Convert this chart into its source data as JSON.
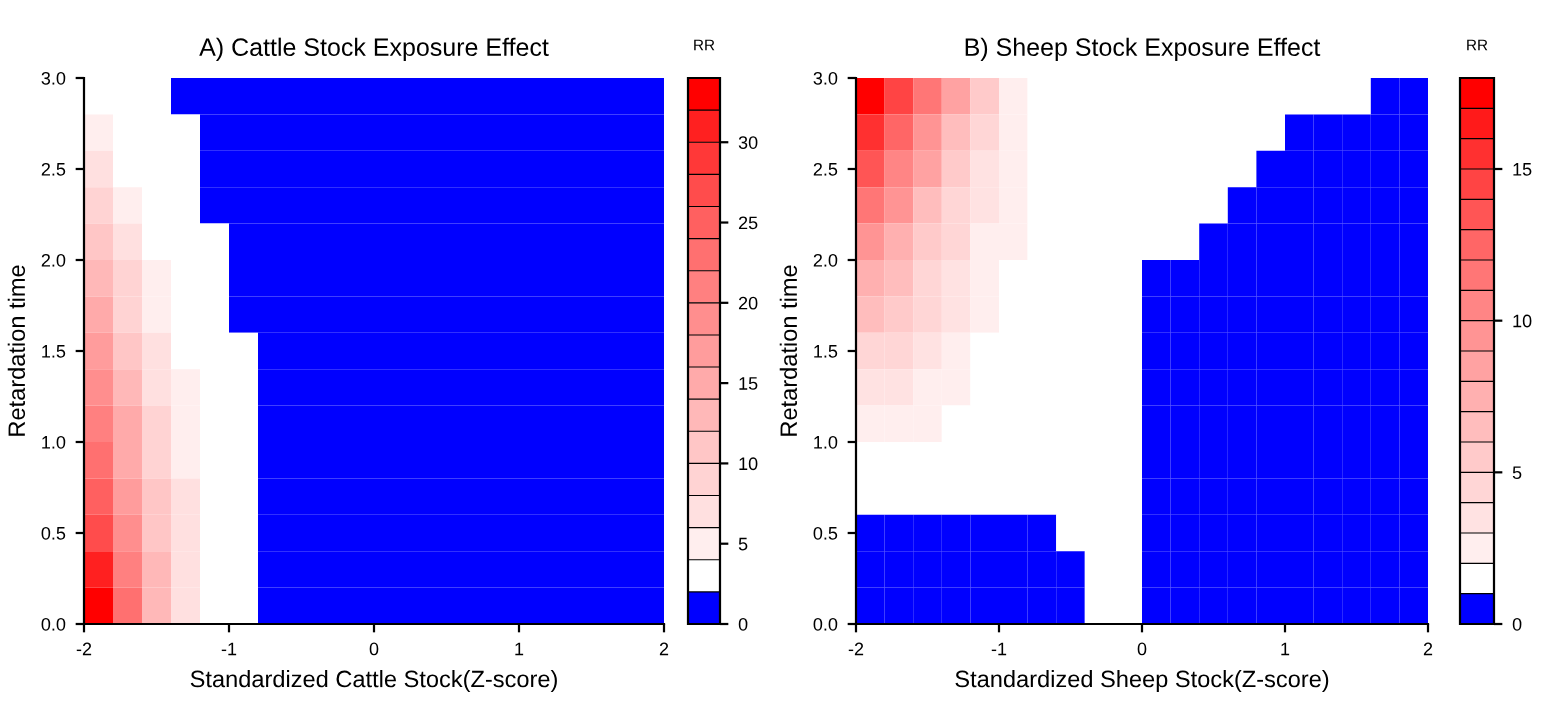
{
  "chart_data": [
    {
      "type": "heatmap",
      "title": "A) Cattle Stock Exposure Effect",
      "xlabel": "Standardized Cattle Stock(Z-score)",
      "ylabel": "Retardation time",
      "clabel": "RR",
      "x": [
        -1.9,
        -1.7,
        -1.5,
        -1.3,
        -1.1,
        -0.9,
        -0.7,
        -0.5,
        -0.3,
        -0.1,
        0.1,
        0.3,
        0.5,
        0.7,
        0.9,
        1.1,
        1.3,
        1.5,
        1.7,
        1.9
      ],
      "y": [
        2.9,
        2.7,
        2.5,
        2.3,
        2.1,
        1.9,
        1.7,
        1.5,
        1.3,
        1.1,
        0.9,
        0.7,
        0.5,
        0.3,
        0.1
      ],
      "xlim": [
        -2,
        2
      ],
      "xticks": [
        -2,
        -1,
        0,
        1,
        2
      ],
      "ylim": [
        0,
        3
      ],
      "yticks": [
        {
          "value": 0,
          "label": "0.0"
        },
        {
          "value": 0.5,
          "label": "0.5"
        },
        {
          "value": 1,
          "label": "1.0"
        },
        {
          "value": 1.5,
          "label": "1.5"
        },
        {
          "value": 2,
          "label": "2.0"
        },
        {
          "value": 2.5,
          "label": "2.5"
        },
        {
          "value": 3,
          "label": "3.0"
        }
      ],
      "clim": [
        0,
        34
      ],
      "cticks": [
        0,
        5,
        10,
        15,
        20,
        25,
        30
      ],
      "colors": [
        "#0000ff",
        "#ffffff",
        "#ffeeee",
        "#ffe0e0",
        "#ffd3d3",
        "#ffc6c6",
        "#ffb8b8",
        "#ffaaaa",
        "#ff9c9c",
        "#ff8e8e",
        "#ff8080",
        "#ff7070",
        "#ff6060",
        "#ff4c4c",
        "#ff3838",
        "#ff2020",
        "#ff0000"
      ],
      "cells": [
        [
          3.5,
          3,
          2.5,
          1,
          1,
          1,
          1,
          1,
          1,
          1,
          1,
          1,
          1,
          1,
          1,
          1,
          1,
          1,
          1,
          1
        ],
        [
          5,
          3.5,
          3,
          2.2,
          1,
          1,
          1,
          1,
          1,
          1,
          1,
          1,
          1,
          1,
          1,
          1,
          1,
          1,
          1,
          1
        ],
        [
          6,
          3.8,
          3.2,
          2.5,
          1,
          1,
          1,
          1,
          1,
          1,
          1,
          1,
          1,
          1,
          1,
          1,
          1,
          1,
          1,
          1
        ],
        [
          8,
          4.5,
          3.5,
          2.8,
          1,
          1,
          1,
          1,
          1,
          1,
          1,
          1,
          1,
          1,
          1,
          1,
          1,
          1,
          1,
          1
        ],
        [
          10,
          6,
          3.8,
          3,
          2.2,
          1,
          1,
          1,
          1,
          1,
          1,
          1,
          1,
          1,
          1,
          1,
          1,
          1,
          1,
          1
        ],
        [
          12,
          8,
          4.5,
          3.3,
          2.5,
          1,
          1,
          1,
          1,
          1,
          1,
          1,
          1,
          1,
          1,
          1,
          1,
          1,
          1,
          1
        ],
        [
          14,
          9,
          5.5,
          3.5,
          2.7,
          1,
          1,
          1,
          1,
          1,
          1,
          1,
          1,
          1,
          1,
          1,
          1,
          1,
          1,
          1
        ],
        [
          16,
          11,
          6.5,
          3.8,
          2.8,
          2.1,
          1,
          1,
          1,
          1,
          1,
          1,
          1,
          1,
          1,
          1,
          1,
          1,
          1,
          1
        ],
        [
          18,
          12,
          7.5,
          4.2,
          3,
          2.2,
          1,
          1,
          1,
          1,
          1,
          1,
          1,
          1,
          1,
          1,
          1,
          1,
          1,
          1
        ],
        [
          20,
          14,
          8.5,
          5,
          3.2,
          2.3,
          1,
          1,
          1,
          1,
          1,
          1,
          1,
          1,
          1,
          1,
          1,
          1,
          1,
          1
        ],
        [
          22,
          15,
          9.5,
          5.5,
          3.4,
          2.4,
          1,
          1,
          1,
          1,
          1,
          1,
          1,
          1,
          1,
          1,
          1,
          1,
          1,
          1
        ],
        [
          25,
          17,
          10.5,
          6,
          3.5,
          2.5,
          1,
          1,
          1,
          1,
          1,
          1,
          1,
          1,
          1,
          1,
          1,
          1,
          1,
          1
        ],
        [
          27,
          18,
          11,
          6.5,
          3.6,
          2.5,
          1,
          1,
          1,
          1,
          1,
          1,
          1,
          1,
          1,
          1,
          1,
          1,
          1,
          1
        ],
        [
          30,
          20,
          12,
          7,
          3.8,
          2.6,
          1,
          1,
          1,
          1,
          1,
          1,
          1,
          1,
          1,
          1,
          1,
          1,
          1,
          1
        ],
        [
          33,
          22,
          13,
          7.5,
          3.9,
          2.6,
          1,
          1,
          1,
          1,
          1,
          1,
          1,
          1,
          1,
          1,
          1,
          1,
          1,
          1
        ]
      ]
    },
    {
      "type": "heatmap",
      "title": "B) Sheep Stock Exposure Effect",
      "xlabel": "Standardized Sheep Stock(Z-score)",
      "ylabel": "Retardation time",
      "clabel": "RR",
      "x": [
        -1.9,
        -1.7,
        -1.5,
        -1.3,
        -1.1,
        -0.9,
        -0.7,
        -0.5,
        -0.3,
        -0.1,
        0.1,
        0.3,
        0.5,
        0.7,
        0.9,
        1.1,
        1.3,
        1.5,
        1.7,
        1.9
      ],
      "y": [
        2.9,
        2.7,
        2.5,
        2.3,
        2.1,
        1.9,
        1.7,
        1.5,
        1.3,
        1.1,
        0.9,
        0.7,
        0.5,
        0.3,
        0.1
      ],
      "xlim": [
        -2,
        2
      ],
      "xticks": [
        -2,
        -1,
        0,
        1,
        2
      ],
      "ylim": [
        0,
        3
      ],
      "yticks": [
        {
          "value": 0,
          "label": "0.0"
        },
        {
          "value": 0.5,
          "label": "0.5"
        },
        {
          "value": 1,
          "label": "1.0"
        },
        {
          "value": 1.5,
          "label": "1.5"
        },
        {
          "value": 2,
          "label": "2.0"
        },
        {
          "value": 2.5,
          "label": "2.5"
        },
        {
          "value": 3,
          "label": "3.0"
        }
      ],
      "clim": [
        0,
        18
      ],
      "cticks": [
        0,
        5,
        10,
        15
      ],
      "colors": [
        "#0000ff",
        "#ffffff",
        "#ffeeee",
        "#ffe2e2",
        "#ffd6d6",
        "#ffcaca",
        "#ffbdbd",
        "#ffb0b0",
        "#ffa2a2",
        "#ff9494",
        "#ff8585",
        "#ff7676",
        "#ff6666",
        "#ff5555",
        "#ff4444",
        "#ff3030",
        "#ff1a1a",
        "#ff0000"
      ],
      "cells": [
        [
          17,
          14,
          11,
          8,
          5,
          2.5,
          1.5,
          1.5,
          1.5,
          1.5,
          1.5,
          1.5,
          1.5,
          1.5,
          1.5,
          1.5,
          1.5,
          1.5,
          0.6,
          0.6
        ],
        [
          15,
          12,
          9,
          6.5,
          4,
          2.3,
          1.5,
          1.5,
          1.5,
          1.5,
          1.5,
          1.5,
          1.5,
          1.5,
          1.5,
          0.9,
          0.6,
          0.6,
          0.6,
          0.6
        ],
        [
          13,
          10.5,
          8,
          5.5,
          3.5,
          2.2,
          1.5,
          1.5,
          1.5,
          1.5,
          1.5,
          1.5,
          1.5,
          1.5,
          0.6,
          0.6,
          0.6,
          0.6,
          0.6,
          0.6
        ],
        [
          11,
          9,
          6.5,
          4.5,
          3,
          2.1,
          1.5,
          1.5,
          1.5,
          1.5,
          1.5,
          1.5,
          1.5,
          0.6,
          0.6,
          0.6,
          0.6,
          0.6,
          0.6,
          0.6
        ],
        [
          9,
          7.5,
          5.5,
          4,
          2.8,
          2.05,
          1.5,
          1.5,
          1.5,
          1.5,
          1.5,
          1.5,
          0.6,
          0.6,
          0.6,
          0.6,
          0.6,
          0.6,
          0.6,
          0.6
        ],
        [
          7.5,
          6,
          4.5,
          3.5,
          2.6,
          1.9,
          1.5,
          1.5,
          1.5,
          1.5,
          0.6,
          0.6,
          0.6,
          0.6,
          0.6,
          0.6,
          0.6,
          0.6,
          0.6,
          0.6
        ],
        [
          6,
          5,
          4,
          3,
          2.3,
          1.8,
          1.5,
          1.5,
          1.5,
          1.5,
          0.6,
          0.6,
          0.6,
          0.6,
          0.6,
          0.6,
          0.6,
          0.6,
          0.6,
          0.6
        ],
        [
          4.5,
          4,
          3.3,
          2.6,
          1.9,
          1.7,
          1.5,
          1.5,
          1.5,
          1.5,
          0.6,
          0.6,
          0.6,
          0.6,
          0.6,
          0.6,
          0.6,
          0.6,
          0.6,
          0.6
        ],
        [
          3.2,
          3,
          2.6,
          2.1,
          1.8,
          1.6,
          1.5,
          1.5,
          1.5,
          1.5,
          0.6,
          0.6,
          0.6,
          0.6,
          0.6,
          0.6,
          0.6,
          0.6,
          0.6,
          0.6
        ],
        [
          2.3,
          2.2,
          2,
          1.8,
          1.6,
          1.5,
          1.5,
          1.5,
          1.5,
          1.5,
          0.6,
          0.6,
          0.6,
          0.6,
          0.6,
          0.6,
          0.6,
          0.6,
          0.6,
          0.6
        ],
        [
          1.5,
          1.5,
          1.5,
          1.5,
          1.5,
          1.5,
          1.5,
          1.5,
          1.5,
          1.5,
          0.6,
          0.6,
          0.6,
          0.6,
          0.6,
          0.6,
          0.6,
          0.6,
          0.6,
          0.6
        ],
        [
          1.2,
          1.2,
          1.2,
          1.2,
          1.2,
          1.2,
          1.3,
          1.5,
          1.5,
          1.5,
          0.6,
          0.6,
          0.6,
          0.6,
          0.6,
          0.6,
          0.6,
          0.6,
          0.6,
          0.6
        ],
        [
          0.6,
          0.6,
          0.6,
          0.6,
          0.6,
          0.6,
          0.6,
          1.1,
          1.5,
          1.5,
          0.6,
          0.6,
          0.6,
          0.6,
          0.6,
          0.6,
          0.6,
          0.6,
          0.6,
          0.6
        ],
        [
          0.6,
          0.6,
          0.6,
          0.6,
          0.6,
          0.6,
          0.6,
          0.9,
          1.3,
          1.5,
          0.6,
          0.6,
          0.6,
          0.6,
          0.6,
          0.6,
          0.6,
          0.6,
          0.6,
          0.6
        ],
        [
          0.6,
          0.6,
          0.6,
          0.6,
          0.6,
          0.6,
          0.6,
          0.8,
          1.2,
          1.5,
          0.6,
          0.6,
          0.6,
          0.6,
          0.6,
          0.6,
          0.6,
          0.6,
          0.6,
          0.6
        ]
      ]
    }
  ]
}
